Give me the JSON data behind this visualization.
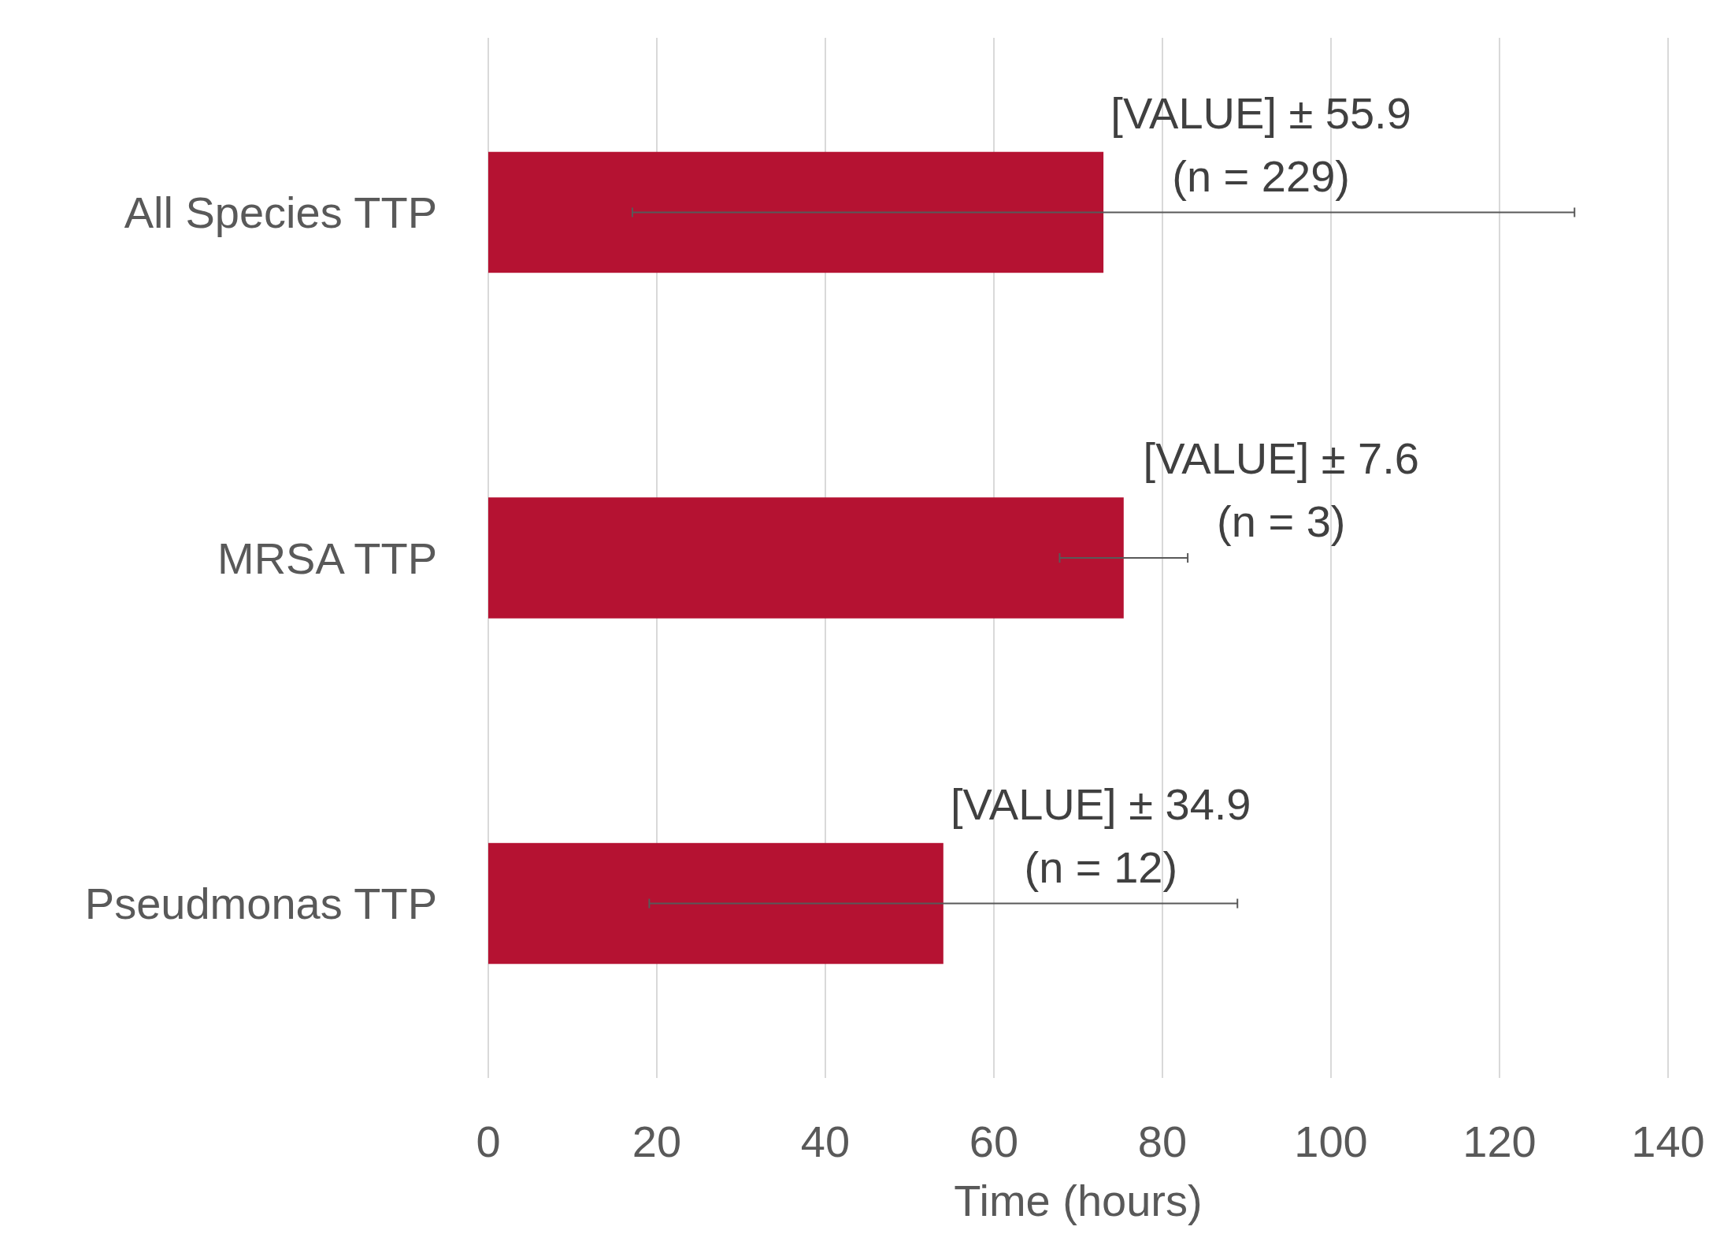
{
  "chart_data": {
    "type": "bar",
    "orientation": "horizontal",
    "xlabel": "Time (hours)",
    "categories": [
      "All Species TTP",
      "MRSA TTP",
      "Pseudmonas TTP"
    ],
    "values": [
      73,
      75.4,
      54
    ],
    "errors": [
      55.9,
      7.6,
      34.9
    ],
    "value_labels": [
      "[VALUE] ± 55.9\n(n = 229)",
      "[VALUE] ± 7.6\n(n = 3)",
      "[VALUE] ± 34.9\n(n = 12)"
    ],
    "color": "#b51232",
    "xlim": [
      0,
      140
    ],
    "xticks": [
      0,
      20,
      40,
      60,
      80,
      100,
      120,
      140
    ],
    "grid": "x"
  }
}
